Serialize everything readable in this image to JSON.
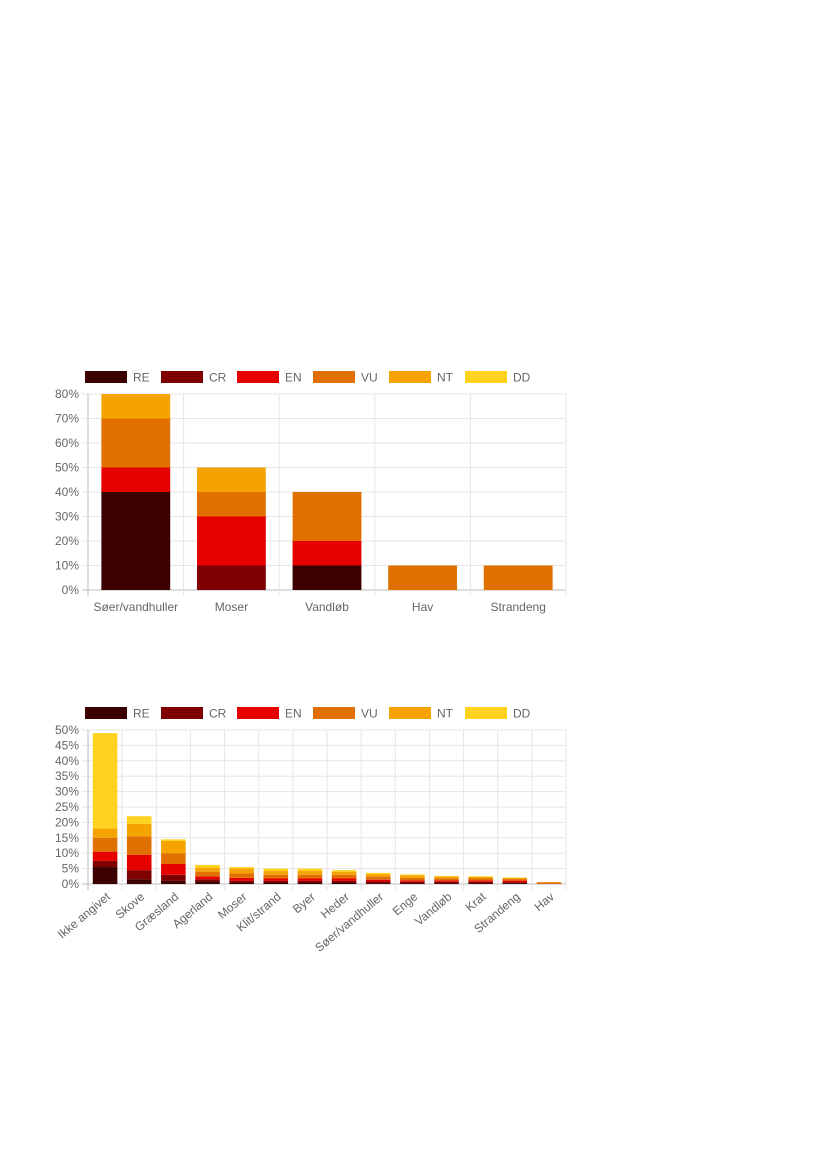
{
  "chart_data": [
    {
      "type": "bar",
      "stacked": true,
      "categories": [
        "Søer/vandhuller",
        "Moser",
        "Vandløb",
        "Hav",
        "Strandeng"
      ],
      "series": [
        {
          "name": "RE",
          "color": "#3b0000",
          "values": [
            40,
            0,
            10,
            0,
            0
          ]
        },
        {
          "name": "CR",
          "color": "#7f0000",
          "values": [
            0,
            10,
            0,
            0,
            0
          ]
        },
        {
          "name": "EN",
          "color": "#e60000",
          "values": [
            10,
            20,
            10,
            0,
            0
          ]
        },
        {
          "name": "VU",
          "color": "#e07000",
          "values": [
            20,
            10,
            20,
            10,
            10
          ]
        },
        {
          "name": "NT",
          "color": "#f5a300",
          "values": [
            10,
            10,
            0,
            0,
            0
          ]
        },
        {
          "name": "DD",
          "color": "#ffd21f",
          "values": [
            0,
            0,
            0,
            0,
            0
          ]
        }
      ],
      "ylim": [
        0,
        80
      ],
      "yticks": [
        "0%",
        "10%",
        "20%",
        "30%",
        "40%",
        "50%",
        "60%",
        "70%",
        "80%"
      ],
      "grid": true,
      "legend": "top"
    },
    {
      "type": "bar",
      "stacked": true,
      "categories": [
        "Ikke angivet",
        "Skove",
        "Græsland",
        "Agerland",
        "Moser",
        "Klit/strand",
        "Byer",
        "Heder",
        "Søer/vandhuller",
        "Enge",
        "Vandløb",
        "Krat",
        "Strandeng",
        "Hav"
      ],
      "series": [
        {
          "name": "RE",
          "color": "#3b0000",
          "values": [
            5.5,
            1.5,
            1.0,
            0.8,
            0.5,
            0.5,
            0.5,
            0.5,
            0.3,
            0.3,
            0.3,
            0.3,
            0.3,
            0.0
          ]
        },
        {
          "name": "CR",
          "color": "#7f0000",
          "values": [
            2.0,
            3.0,
            2.0,
            0.7,
            0.5,
            0.5,
            0.5,
            0.5,
            0.5,
            0.4,
            0.4,
            0.4,
            0.3,
            0.0
          ]
        },
        {
          "name": "EN",
          "color": "#e60000",
          "values": [
            3.0,
            5.0,
            3.5,
            1.0,
            1.0,
            0.8,
            0.8,
            0.8,
            0.6,
            0.5,
            0.5,
            0.5,
            0.5,
            0.1
          ]
        },
        {
          "name": "VU",
          "color": "#e07000",
          "values": [
            4.5,
            6.0,
            3.5,
            1.5,
            1.5,
            1.2,
            1.2,
            1.2,
            1.0,
            0.8,
            0.6,
            0.6,
            0.5,
            0.4
          ]
        },
        {
          "name": "NT",
          "color": "#f5a300",
          "values": [
            3.0,
            4.0,
            4.0,
            1.2,
            1.5,
            1.2,
            1.2,
            1.0,
            0.8,
            0.8,
            0.6,
            0.5,
            0.4,
            0.1
          ]
        },
        {
          "name": "DD",
          "color": "#ffd21f",
          "values": [
            31.0,
            2.5,
            0.5,
            1.0,
            0.5,
            0.8,
            0.8,
            0.5,
            0.4,
            0.3,
            0.2,
            0.2,
            0.1,
            0.0
          ]
        }
      ],
      "ylim": [
        0,
        50
      ],
      "yticks": [
        "0%",
        "5%",
        "10%",
        "15%",
        "20%",
        "25%",
        "30%",
        "35%",
        "40%",
        "45%",
        "50%"
      ],
      "grid": true,
      "legend": "top"
    }
  ]
}
